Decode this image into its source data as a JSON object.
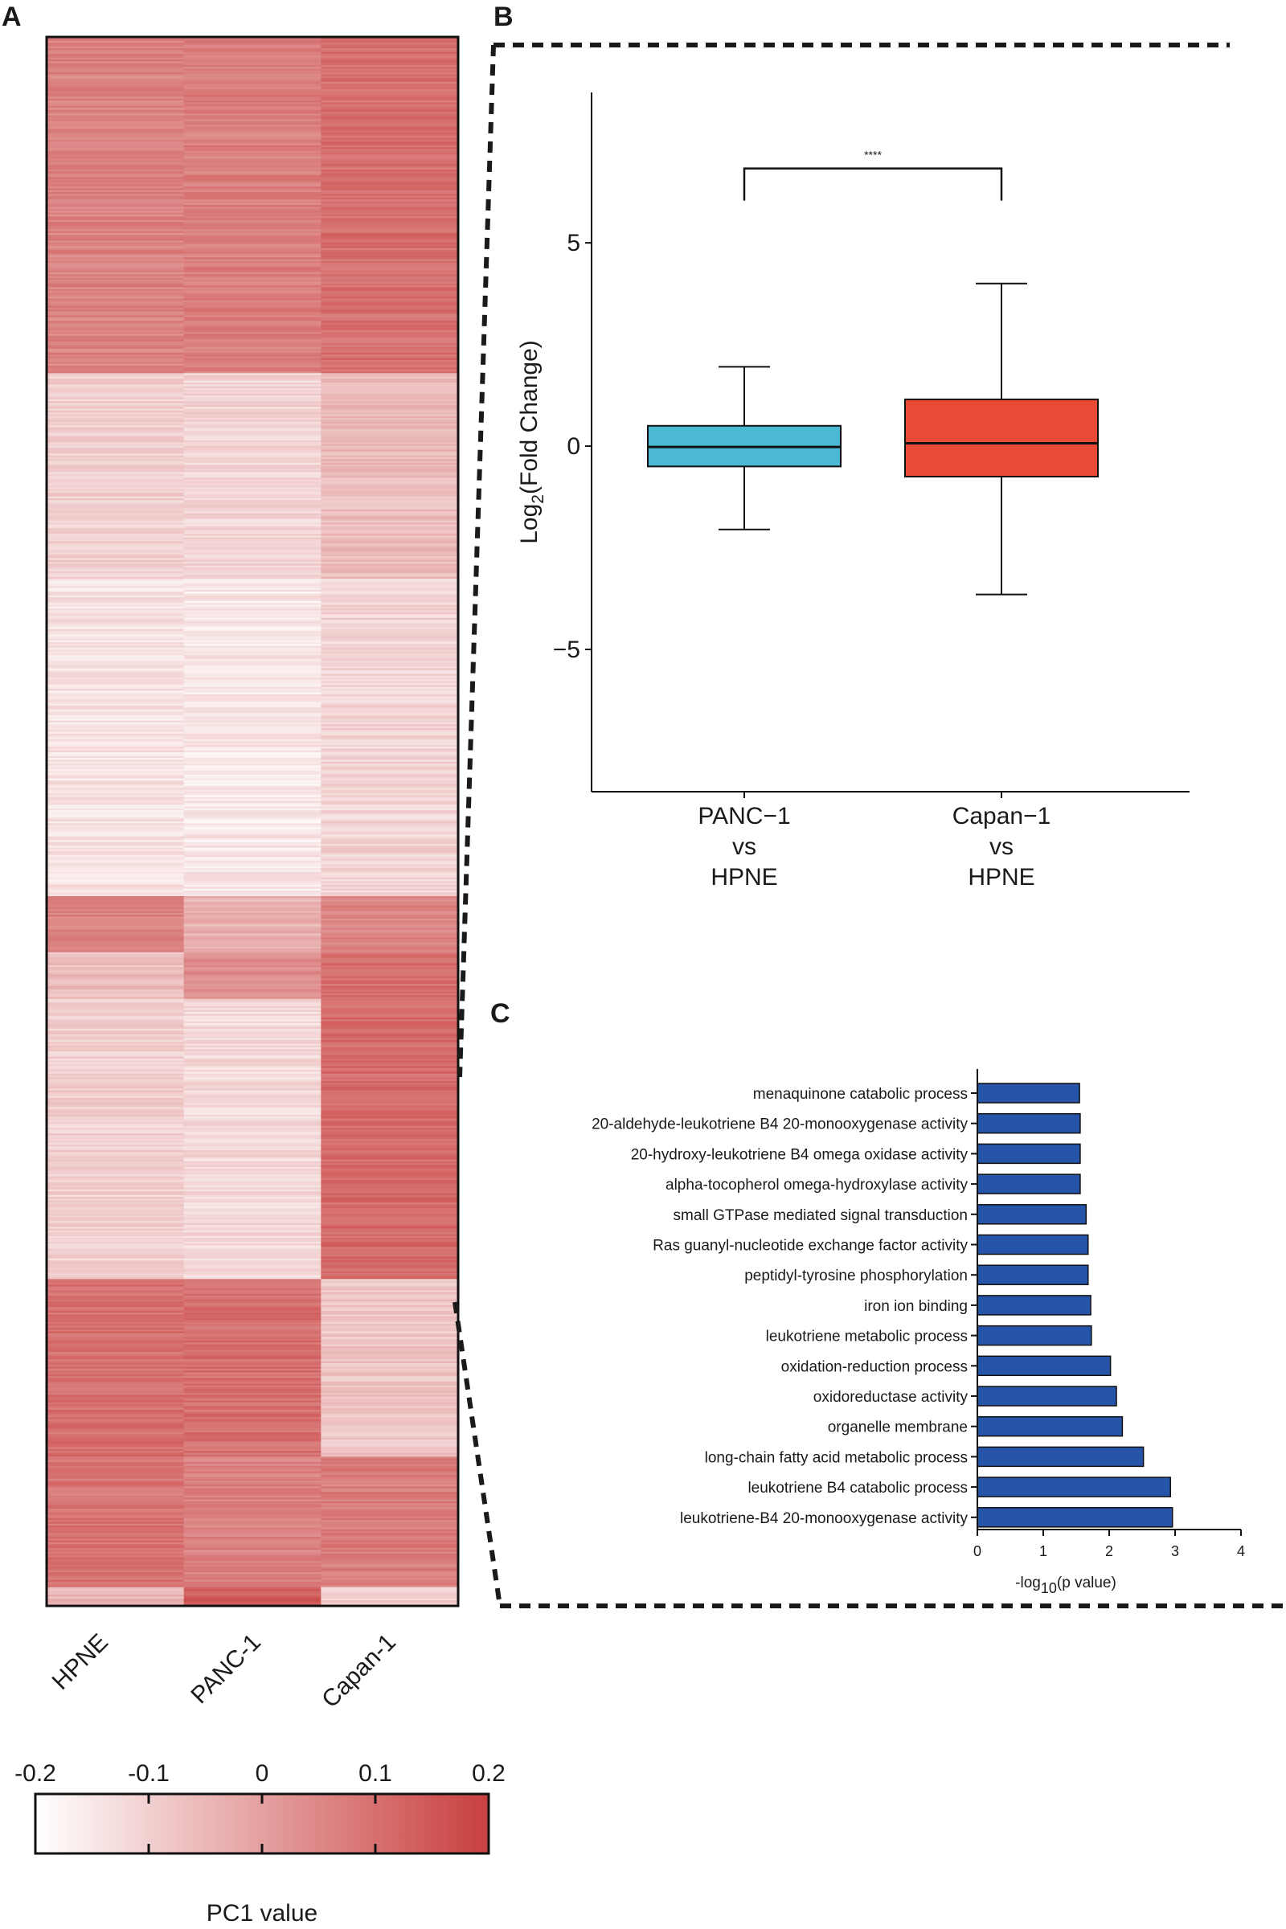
{
  "panels": {
    "a": "A",
    "b": "B",
    "c": "C"
  },
  "colors": {
    "heat_low": "#ffffff",
    "heat_high": "#c8403f",
    "panc1_box": "#4bb8d4",
    "capan1_box": "#e84a35",
    "go_bar": "#2654a8",
    "dashed": "#1a1a1a"
  },
  "chart_data": [
    {
      "type": "heatmap",
      "columns": [
        "HPNE",
        "PANC-1",
        "Capan-1"
      ],
      "row_blocks": [
        {
          "rows": 180,
          "values": [
            0.06,
            0.07,
            0.1
          ]
        },
        {
          "rows": 110,
          "values": [
            -0.1,
            -0.11,
            -0.06
          ]
        },
        {
          "rows": 170,
          "values": [
            -0.14,
            -0.15,
            -0.11
          ]
        },
        {
          "rows": 30,
          "values": [
            0.06,
            -0.04,
            0.05
          ]
        },
        {
          "rows": 25,
          "values": [
            -0.06,
            0.04,
            0.1
          ]
        },
        {
          "rows": 150,
          "values": [
            -0.1,
            -0.12,
            0.11
          ]
        },
        {
          "rows": 95,
          "values": [
            0.1,
            0.1,
            -0.08
          ]
        },
        {
          "rows": 70,
          "values": [
            0.09,
            0.06,
            0.07
          ]
        },
        {
          "rows": 10,
          "values": [
            -0.05,
            0.14,
            -0.1
          ]
        }
      ],
      "colorbar": {
        "title": "PC1 value",
        "min": -0.2,
        "max": 0.2,
        "tick_values": [
          -0.2,
          -0.1,
          0,
          0.1,
          0.2
        ],
        "tick_labels": [
          "-0.2",
          "-0.1",
          "0",
          "0.1",
          "0.2"
        ]
      }
    },
    {
      "type": "box",
      "ylabel_main": "Log",
      "ylabel_sub": "2",
      "ylabel_rest": "(Fold Change)",
      "ylim": [
        -8.5,
        8.7
      ],
      "yticks": [
        5,
        0,
        -5
      ],
      "ytick_labels": [
        "5",
        "0",
        "−5"
      ],
      "groups": [
        {
          "label_lines": [
            "PANC−1",
            "vs",
            "HPNE"
          ],
          "min": -2.05,
          "q1": -0.5,
          "median": -0.02,
          "q3": 0.5,
          "max": 1.95
        },
        {
          "label_lines": [
            "Capan−1",
            "vs",
            "HPNE"
          ],
          "min": -3.65,
          "q1": -0.75,
          "median": 0.07,
          "q3": 1.15,
          "max": 4.0
        }
      ],
      "significance": {
        "label": "****",
        "y": 6.0
      }
    },
    {
      "type": "bar",
      "orientation": "horizontal",
      "xlabel_main": "-log",
      "xlabel_sub": "10",
      "xlabel_rest": "(p value)",
      "xlim": [
        0,
        4
      ],
      "xticks": [
        0,
        1,
        2,
        3,
        4
      ],
      "categories": [
        "menaquinone catabolic process",
        "20-aldehyde-leukotriene B4 20-monooxygenase activity",
        "20-hydroxy-leukotriene B4 omega oxidase activity",
        "alpha-tocopherol omega-hydroxylase activity",
        "small GTPase mediated signal transduction",
        "Ras guanyl-nucleotide exchange factor activity",
        "peptidyl-tyrosine phosphorylation",
        "iron ion binding",
        "leukotriene metabolic process",
        "oxidation-reduction process",
        "oxidoreductase activity",
        "organelle membrane",
        "long-chain fatty acid metabolic process",
        "leukotriene B4 catabolic process",
        "leukotriene-B4 20-monooxygenase activity"
      ],
      "values": [
        1.55,
        1.56,
        1.56,
        1.56,
        1.65,
        1.68,
        1.68,
        1.72,
        1.73,
        2.02,
        2.11,
        2.2,
        2.52,
        2.93,
        2.96
      ]
    }
  ]
}
